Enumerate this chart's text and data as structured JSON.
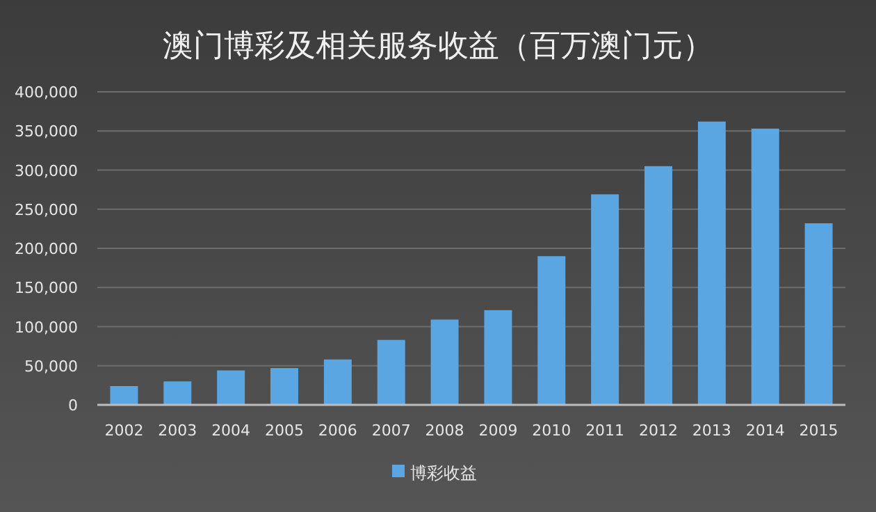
{
  "chart_data": {
    "type": "bar",
    "title": "澳门博彩及相关服务收益（百万澳门元）",
    "categories": [
      "2002",
      "2003",
      "2004",
      "2005",
      "2006",
      "2007",
      "2008",
      "2009",
      "2010",
      "2011",
      "2012",
      "2013",
      "2014",
      "2015"
    ],
    "series": [
      {
        "name": "博彩收益",
        "color": "#5aa6e2",
        "values": [
          24000,
          30000,
          44000,
          47000,
          58000,
          83000,
          109000,
          121000,
          190000,
          269000,
          305000,
          362000,
          353000,
          232000
        ]
      }
    ],
    "ylim": [
      0,
      400000
    ],
    "yticks": [
      {
        "value": 0,
        "label": "0"
      },
      {
        "value": 50000,
        "label": "50,000"
      },
      {
        "value": 100000,
        "label": "100,000"
      },
      {
        "value": 150000,
        "label": "150,000"
      },
      {
        "value": 200000,
        "label": "200,000"
      },
      {
        "value": 250000,
        "label": "250,000"
      },
      {
        "value": 300000,
        "label": "300,000"
      },
      {
        "value": 350000,
        "label": "350,000"
      },
      {
        "value": 400000,
        "label": "400,000"
      }
    ],
    "grid": "y",
    "legend": "bottom"
  }
}
